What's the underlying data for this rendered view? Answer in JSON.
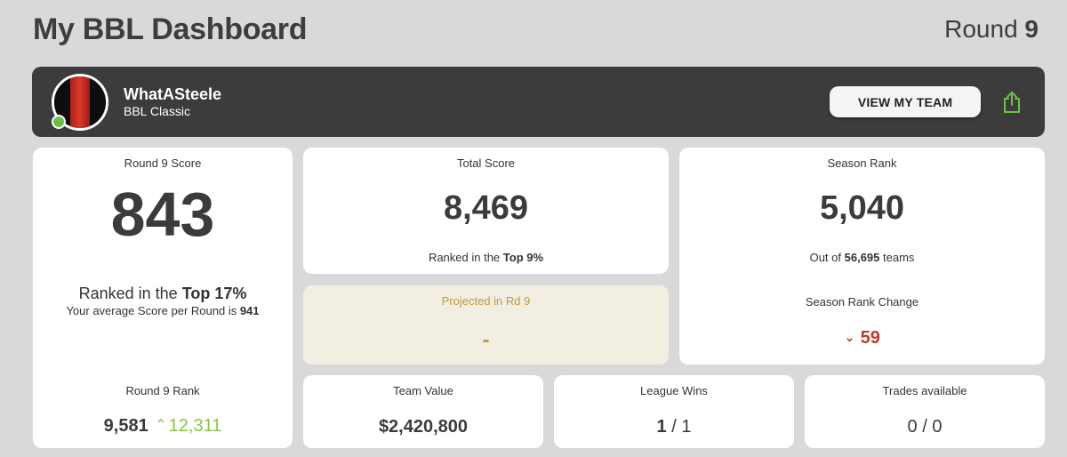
{
  "header": {
    "title": "My BBL Dashboard",
    "round_prefix": "Round",
    "round_number": "9"
  },
  "team": {
    "name": "WhatASteele",
    "league": "BBL Classic",
    "view_button": "VIEW MY TEAM",
    "status": "online",
    "avatar_colors": [
      "#0d0d0d",
      "#d93a2a",
      "#0d0d0d"
    ],
    "status_color": "#6cc04a"
  },
  "round_score": {
    "label": "Round 9 Score",
    "value": "843",
    "rank_prefix": "Ranked in the",
    "rank_top": "Top 17%",
    "avg_prefix": "Your average Score per Round is",
    "avg_value": "941",
    "round_rank_label": "Round 9 Rank",
    "round_rank_value": "9,581",
    "round_rank_prev": "12,311",
    "round_rank_direction": "up"
  },
  "total_score": {
    "label": "Total Score",
    "value": "8,469",
    "rank_prefix": "Ranked in the",
    "rank_top": "Top 9%"
  },
  "projected": {
    "label": "Projected in Rd 9",
    "value": "-"
  },
  "season_rank": {
    "label": "Season Rank",
    "value": "5,040",
    "out_of_prefix": "Out of",
    "out_of_count": "56,695",
    "out_of_suffix": "teams",
    "change_label": "Season Rank Change",
    "change_value": "59",
    "change_direction": "down"
  },
  "team_value": {
    "label": "Team Value",
    "value": "$2,420,800"
  },
  "league_wins": {
    "label": "League Wins",
    "wins": "1",
    "separator": "/",
    "total": "1"
  },
  "trades": {
    "label": "Trades available",
    "value": "0 / 0"
  },
  "colors": {
    "background": "#d9d9d9",
    "banner": "#3c3c3c",
    "positive": "#8ac540",
    "negative": "#c0392b",
    "projected_bg": "#f2eee2",
    "projected_text": "#c49a3c"
  }
}
